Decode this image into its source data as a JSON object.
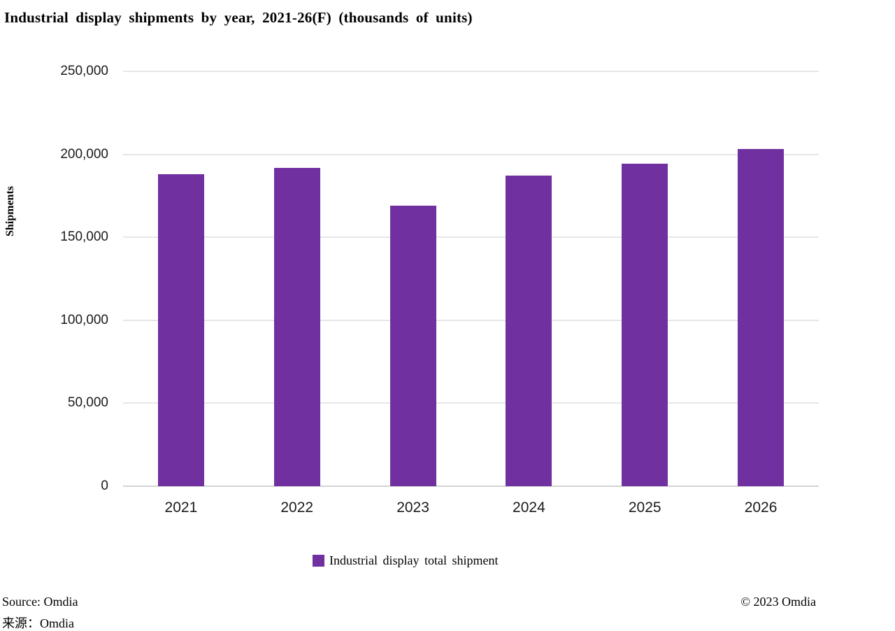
{
  "page": {
    "title": "Industrial display shipments by year, 2021-26(F) (thousands of units)"
  },
  "chart_data": {
    "type": "bar",
    "title": "Industrial display shipments by year, 2021-26(F) (thousands of units)",
    "categories": [
      "2021",
      "2022",
      "2023",
      "2024",
      "2025",
      "2026"
    ],
    "values": [
      188000,
      192000,
      169000,
      187000,
      194500,
      203000
    ],
    "series": [
      {
        "name": "Industrial display total shipment",
        "values": [
          188000,
          192000,
          169000,
          187000,
          194500,
          203000
        ]
      }
    ],
    "xlabel": "",
    "ylabel": "Shipments",
    "ylim": [
      0,
      250000
    ],
    "yticks": [
      0,
      50000,
      100000,
      150000,
      200000,
      250000
    ],
    "ytick_labels": [
      "0",
      "50,000",
      "100,000",
      "150,000",
      "200,000",
      "250,000"
    ],
    "grid": "horizontal-only",
    "legend_position": "bottom-center",
    "bar_color": "#7030A0",
    "gridline_color": "#e6e6e6"
  },
  "legend": {
    "items": [
      {
        "label": "Industrial display total shipment",
        "color": "#7030A0"
      }
    ]
  },
  "footer": {
    "source_en": "Source: Omdia",
    "source_zh": "来源：Omdia",
    "copyright": "© 2023 Omdia"
  }
}
